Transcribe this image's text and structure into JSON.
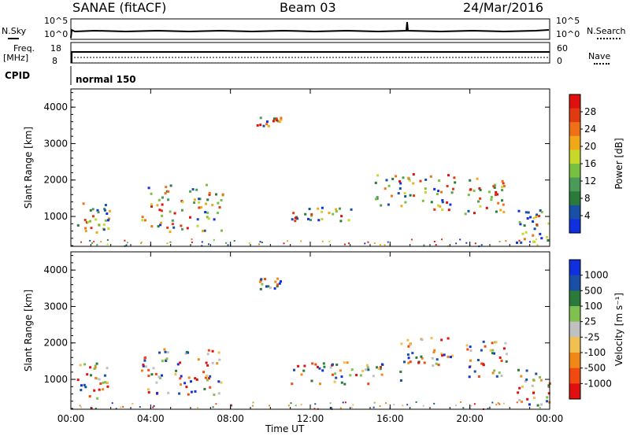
{
  "header": {
    "station": "SANAE (fitACF)",
    "beam": "Beam 03",
    "date": "24/Mar/2016"
  },
  "top_panels": {
    "nsky_label": "N.Sky",
    "nsky_ticks": [
      "10^5",
      "10^0"
    ],
    "nsearch_label": "N.Search",
    "nsearch_ticks": [
      "10^5",
      "10^0"
    ],
    "freq_label_1": "Freq.",
    "freq_label_2": "[MHz]",
    "freq_ticks": [
      "18",
      "8"
    ],
    "nave_label": "Nave",
    "nave_ticks": [
      "60",
      "0"
    ],
    "cpid_label": "CPID",
    "cpid_value": "normal 150"
  },
  "colors": {
    "power_scale": [
      "#1030e0",
      "#1a4fa8",
      "#2a7a3a",
      "#4a9a5a",
      "#78c040",
      "#c8d82a",
      "#f0a818",
      "#f07018",
      "#e03a10",
      "#e01010"
    ],
    "velocity_scale": [
      "#e01010",
      "#f04a10",
      "#f08818",
      "#f0c050",
      "#c0c0c0",
      "#80c050",
      "#2a7a3a",
      "#1a4fa8",
      "#1030e0"
    ]
  },
  "chart_data": [
    {
      "type": "heatmap",
      "name": "Power",
      "xlabel": "",
      "ylabel": "Slant Range [km]",
      "x_ticks": [
        "00:00",
        "04:00",
        "08:00",
        "12:00",
        "16:00",
        "20:00",
        "00:00"
      ],
      "xlim": [
        0,
        24
      ],
      "ylim": [
        180,
        4500
      ],
      "y_ticks": [
        "1000",
        "2000",
        "3000",
        "4000"
      ],
      "colorbar_label": "Power [dB]",
      "colorbar_ticks": [
        "28",
        "24",
        "20",
        "16",
        "12",
        "8",
        "4"
      ],
      "colorbar_range": [
        0,
        30
      ],
      "echo_regions": [
        {
          "t_start": 0.3,
          "t_end": 1.9,
          "r_low": 500,
          "r_high": 1500
        },
        {
          "t_start": 3.5,
          "t_end": 7.6,
          "r_low": 600,
          "r_high": 1900
        },
        {
          "t_start": 9.3,
          "t_end": 10.5,
          "r_low": 3500,
          "r_high": 3800
        },
        {
          "t_start": 11.0,
          "t_end": 14.2,
          "r_low": 900,
          "r_high": 1300
        },
        {
          "t_start": 15.2,
          "t_end": 19.2,
          "r_low": 1200,
          "r_high": 2200
        },
        {
          "t_start": 19.7,
          "t_end": 21.8,
          "r_low": 1100,
          "r_high": 2100
        },
        {
          "t_start": 22.3,
          "t_end": 24.0,
          "r_low": 300,
          "r_high": 1300
        }
      ]
    },
    {
      "type": "heatmap",
      "name": "Velocity",
      "xlabel": "Time UT",
      "ylabel": "Slant Range [km]",
      "x_ticks": [
        "00:00",
        "04:00",
        "08:00",
        "12:00",
        "16:00",
        "20:00",
        "00:00"
      ],
      "xlim": [
        0,
        24
      ],
      "ylim": [
        180,
        4500
      ],
      "y_ticks": [
        "1000",
        "2000",
        "3000",
        "4000"
      ],
      "colorbar_label": "Velocity [m s⁻¹]",
      "colorbar_ticks": [
        "1000",
        "500",
        "100",
        "25",
        "-25",
        "-100",
        "-500",
        "-1000"
      ],
      "echo_regions": [
        {
          "t_start": 0.3,
          "t_end": 1.9,
          "r_low": 500,
          "r_high": 1500
        },
        {
          "t_start": 3.5,
          "t_end": 7.6,
          "r_low": 600,
          "r_high": 1900
        },
        {
          "t_start": 9.3,
          "t_end": 10.5,
          "r_low": 3500,
          "r_high": 3800
        },
        {
          "t_start": 11.0,
          "t_end": 16.5,
          "r_low": 900,
          "r_high": 1500
        },
        {
          "t_start": 16.5,
          "t_end": 19.2,
          "r_low": 1400,
          "r_high": 2200
        },
        {
          "t_start": 19.7,
          "t_end": 21.8,
          "r_low": 1100,
          "r_high": 2100
        },
        {
          "t_start": 22.3,
          "t_end": 24.0,
          "r_low": 300,
          "r_high": 1300
        }
      ]
    }
  ]
}
